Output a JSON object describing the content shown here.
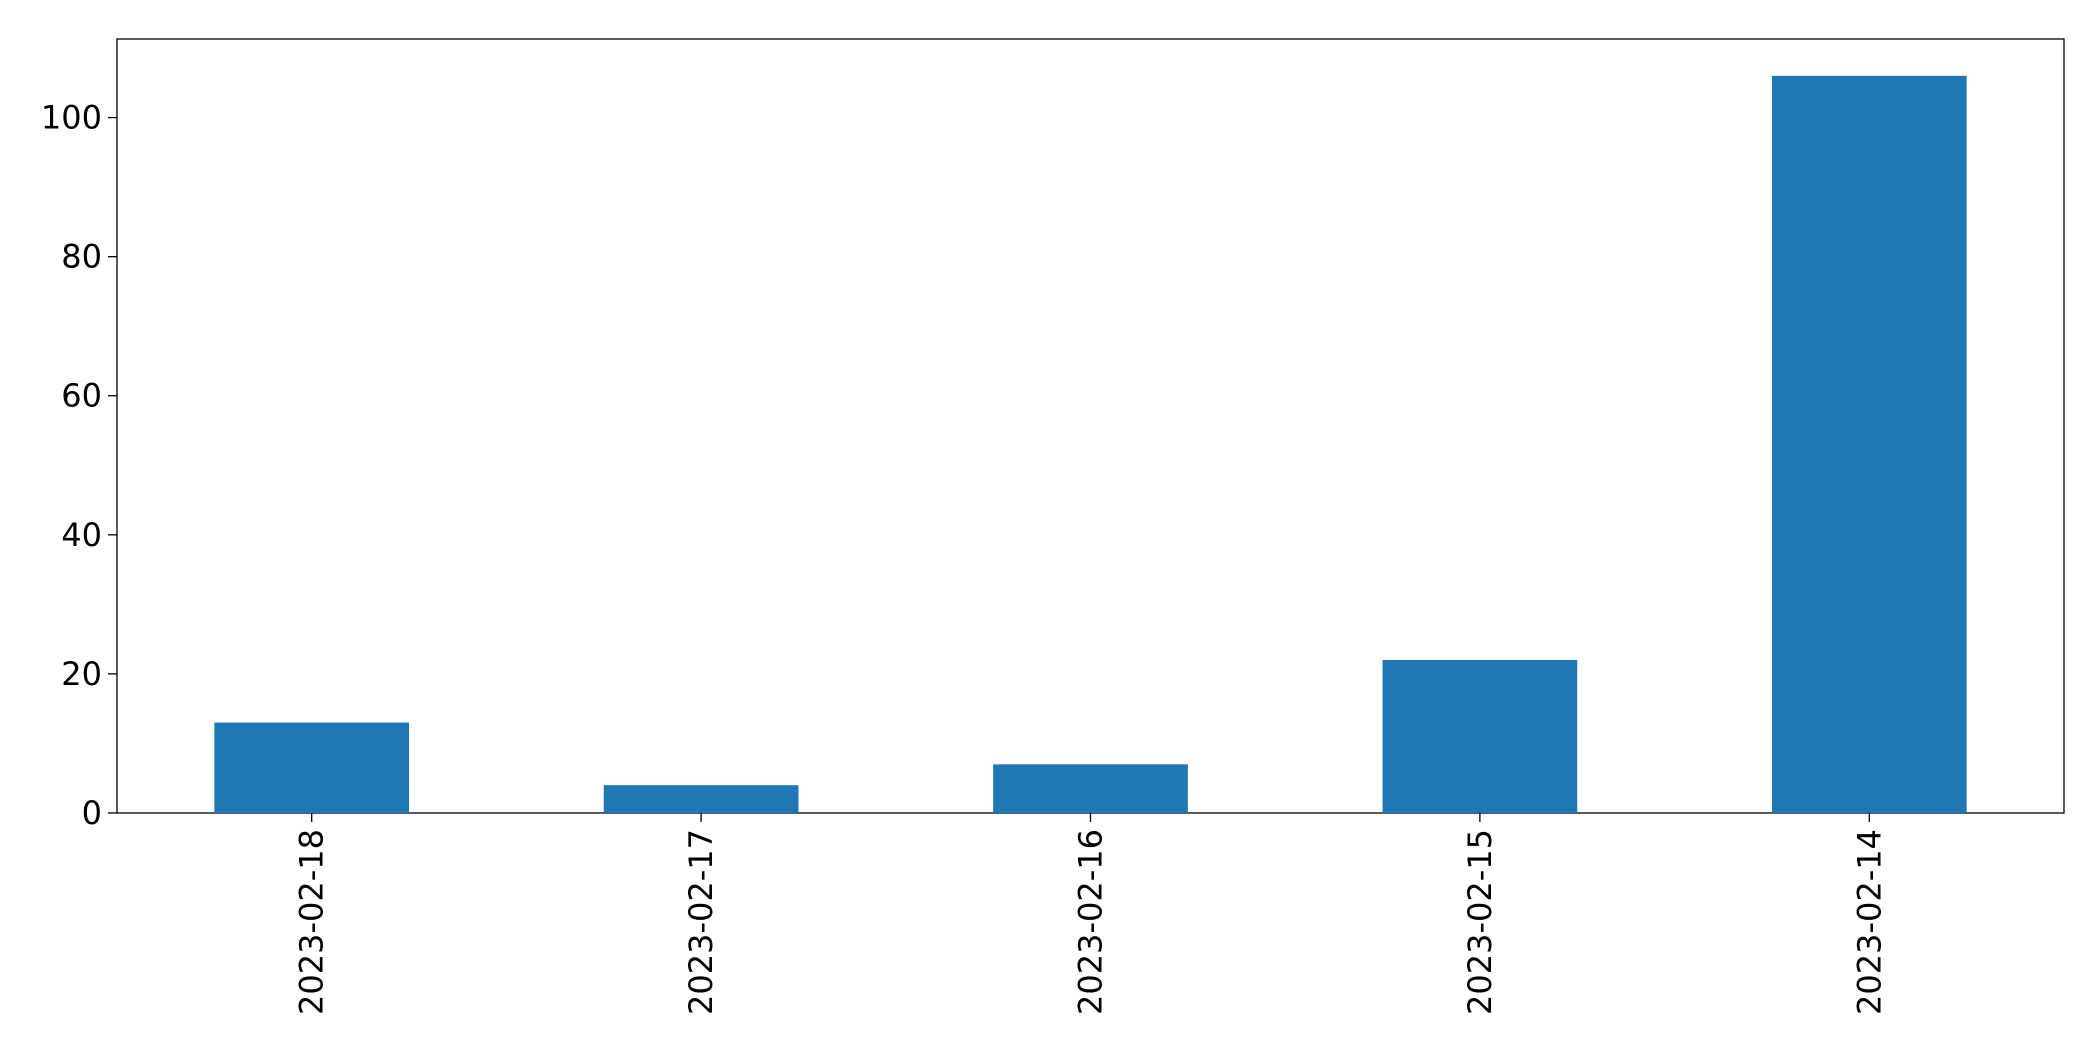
{
  "chart_data": {
    "type": "bar",
    "categories": [
      "2023-02-18",
      "2023-02-17",
      "2023-02-16",
      "2023-02-15",
      "2023-02-14"
    ],
    "values": [
      13,
      4,
      7,
      22,
      106
    ],
    "color": "#1f77b4",
    "ylim": [
      0,
      111.3
    ],
    "yticks": [
      0,
      20,
      40,
      60,
      80,
      100
    ]
  }
}
